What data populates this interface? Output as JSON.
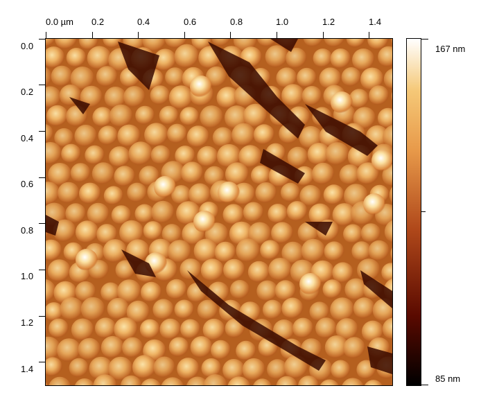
{
  "image": {
    "description_icon": "afm-height-map",
    "x_axis": {
      "ticks": [
        "0.0 µm",
        "0.2",
        "0.4",
        "0.6",
        "0.8",
        "1.0",
        "1.2",
        "1.4"
      ]
    },
    "y_axis": {
      "ticks": [
        "0.0",
        "0.2",
        "0.4",
        "0.6",
        "0.8",
        "1.0",
        "1.2",
        "1.4"
      ]
    },
    "colorbar": {
      "max_label": "167 nm",
      "min_label": "85 nm",
      "colors": [
        "#000000",
        "#5a0a00",
        "#b0481a",
        "#e89a4a",
        "#f5c877",
        "#ffffff"
      ]
    }
  }
}
